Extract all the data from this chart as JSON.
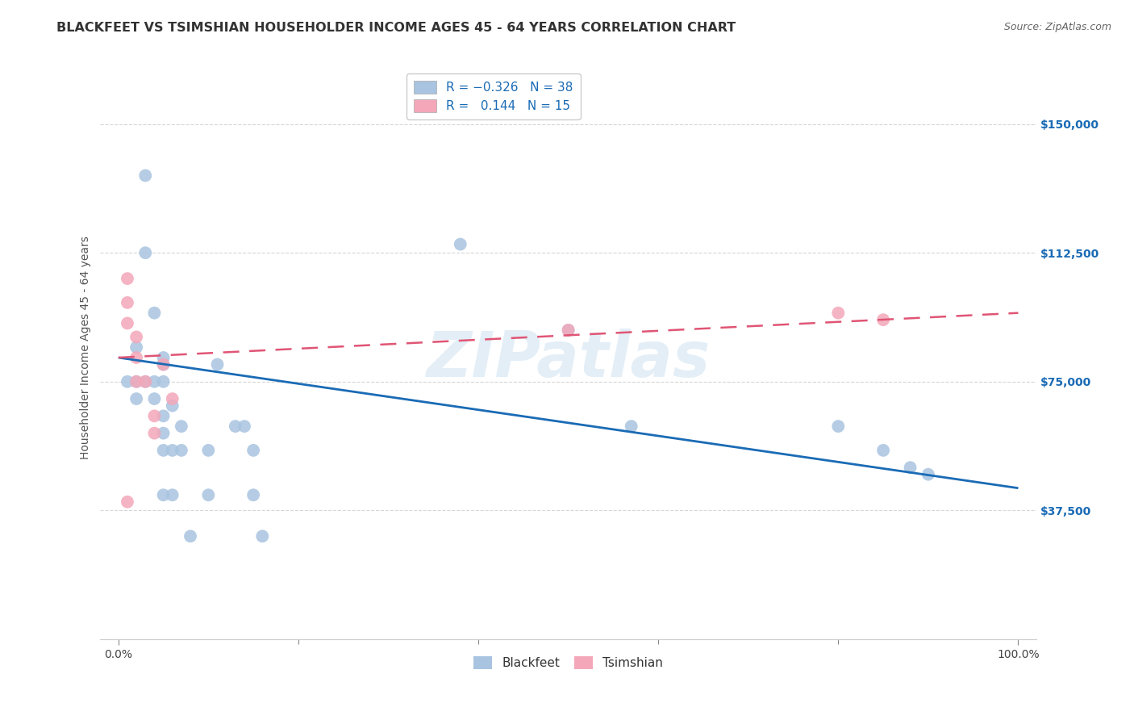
{
  "title": "BLACKFEET VS TSIMSHIAN HOUSEHOLDER INCOME AGES 45 - 64 YEARS CORRELATION CHART",
  "source": "Source: ZipAtlas.com",
  "xlabel": "",
  "ylabel": "Householder Income Ages 45 - 64 years",
  "xlim": [
    -2,
    102
  ],
  "ylim": [
    0,
    170000
  ],
  "yticks": [
    37500,
    75000,
    112500,
    150000
  ],
  "ytick_labels": [
    "$37,500",
    "$75,000",
    "$112,500",
    "$150,000"
  ],
  "xticks": [
    0,
    100
  ],
  "xtick_labels": [
    "0.0%",
    "100.0%"
  ],
  "blackfeet_color": "#a8c4e0",
  "tsimshian_color": "#f4a7b9",
  "blackfeet_line_color": "#1a6bb5",
  "tsimshian_line_color": "#e05575",
  "blackfeet_R": -0.326,
  "blackfeet_N": 38,
  "tsimshian_R": 0.144,
  "tsimshian_N": 15,
  "blackfeet_x": [
    1,
    2,
    2,
    3,
    3,
    4,
    4,
    5,
    5,
    5,
    5,
    5,
    5,
    6,
    6,
    7,
    7,
    8,
    10,
    10,
    11,
    13,
    14,
    15,
    15,
    16,
    38,
    50,
    57,
    80,
    85,
    88,
    90,
    3,
    4,
    6,
    2,
    5
  ],
  "blackfeet_y": [
    75000,
    85000,
    70000,
    135000,
    112500,
    95000,
    75000,
    82000,
    75000,
    65000,
    60000,
    55000,
    42000,
    68000,
    42000,
    62000,
    55000,
    30000,
    55000,
    42000,
    80000,
    62000,
    62000,
    55000,
    42000,
    30000,
    115000,
    90000,
    62000,
    62000,
    55000,
    50000,
    48000,
    75000,
    70000,
    55000,
    75000,
    80000
  ],
  "tsimshian_x": [
    1,
    1,
    1,
    2,
    2,
    2,
    3,
    4,
    5,
    6,
    50,
    80,
    85,
    1,
    4
  ],
  "tsimshian_y": [
    105000,
    98000,
    92000,
    88000,
    82000,
    75000,
    75000,
    65000,
    80000,
    70000,
    90000,
    95000,
    93000,
    40000,
    60000
  ],
  "blue_line_x0": 0,
  "blue_line_x1": 100,
  "blue_line_y0": 82000,
  "blue_line_y1": 44000,
  "pink_line_x0": 0,
  "pink_line_x1": 100,
  "pink_line_y0": 82000,
  "pink_line_y1": 95000,
  "watermark": "ZIPatlas",
  "marker_size": 130,
  "title_fontsize": 11.5,
  "axis_label_fontsize": 10,
  "tick_fontsize": 10,
  "legend_fontsize": 11,
  "background_color": "#ffffff",
  "grid_color": "#cccccc",
  "grid_style": "--",
  "grid_alpha": 0.8
}
